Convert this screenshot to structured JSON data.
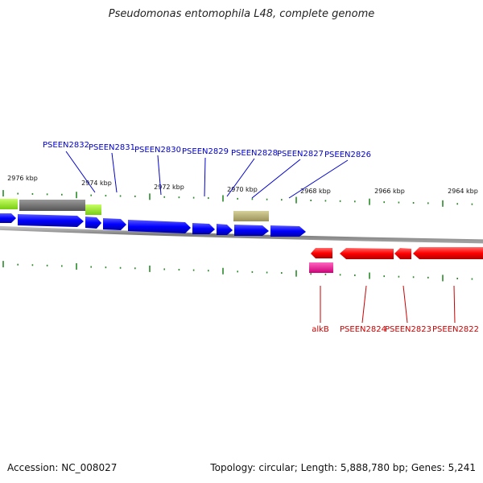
{
  "title": "Pseudomonas entomophila L48, complete genome",
  "footer": {
    "accession": "Accession: NC_008027",
    "summary": "Topology: circular; Length: 5,888,780 bp; Genes: 5,241"
  },
  "colors": {
    "forward_gene": "#0000ff",
    "reverse_gene": "#ff0000",
    "backbone": "#888888",
    "tick": "#2a8a2a",
    "label_forward": "#0000cc",
    "label_reverse": "#cc0000",
    "feature_lime": "#99ee22",
    "feature_gray": "#707070",
    "feature_olive": "#b8b070",
    "feature_magenta": "#ee2299"
  },
  "scale_labels": [
    "2976 kbp",
    "2974 kbp",
    "2972 kbp",
    "2970 kbp",
    "2968 kbp",
    "2966 kbp",
    "2964 kbp"
  ],
  "forward_labels": [
    "PSEEN2832",
    "PSEEN2831",
    "PSEEN2830",
    "PSEEN2829",
    "PSEEN2828",
    "PSEEN2827",
    "PSEEN2826"
  ],
  "reverse_labels": [
    "alkB",
    "PSEEN2824",
    "PSEEN2823",
    "PSEEN2822"
  ]
}
